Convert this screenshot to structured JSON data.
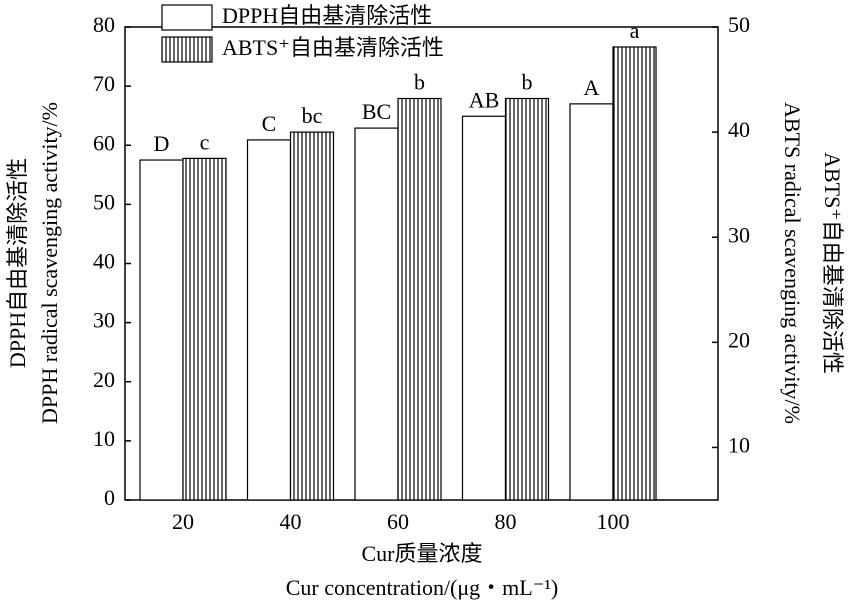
{
  "chart_data": {
    "type": "bar",
    "categories": [
      "20",
      "40",
      "60",
      "80",
      "100"
    ],
    "series": [
      {
        "name": "DPPH自由基清除活性",
        "color": "#000000",
        "pattern": "none",
        "axis": "y",
        "values": [
          57.5,
          60.9,
          62.9,
          64.9,
          67.0
        ],
        "labels": [
          "D",
          "C",
          "BC",
          "AB",
          "A"
        ]
      },
      {
        "name": "ABTS⁺自由基清除活性",
        "color": "#000000",
        "pattern": "vertical-lines",
        "axis": "y2",
        "values": [
          37.5,
          40.0,
          43.2,
          43.2,
          48.1
        ],
        "labels": [
          "c",
          "bc",
          "b",
          "b",
          "a"
        ]
      }
    ],
    "ylim": [
      0,
      80
    ],
    "yticks": [
      0,
      10,
      20,
      30,
      40,
      50,
      60,
      70,
      80
    ],
    "y2lim": [
      5,
      50
    ],
    "y2ticks": [
      10,
      20,
      30,
      40,
      50
    ],
    "ylabel": [
      "DPPH自由基清除活性",
      "DPPH radical scavenging activity/%"
    ],
    "y2label": [
      "ABTS radical scavenging activity/%",
      "ABTS⁺自由基清除活性"
    ],
    "xlabel": [
      "Cur质量浓度",
      "Cur concentration/(μg・mL⁻¹)"
    ],
    "grid": false
  }
}
